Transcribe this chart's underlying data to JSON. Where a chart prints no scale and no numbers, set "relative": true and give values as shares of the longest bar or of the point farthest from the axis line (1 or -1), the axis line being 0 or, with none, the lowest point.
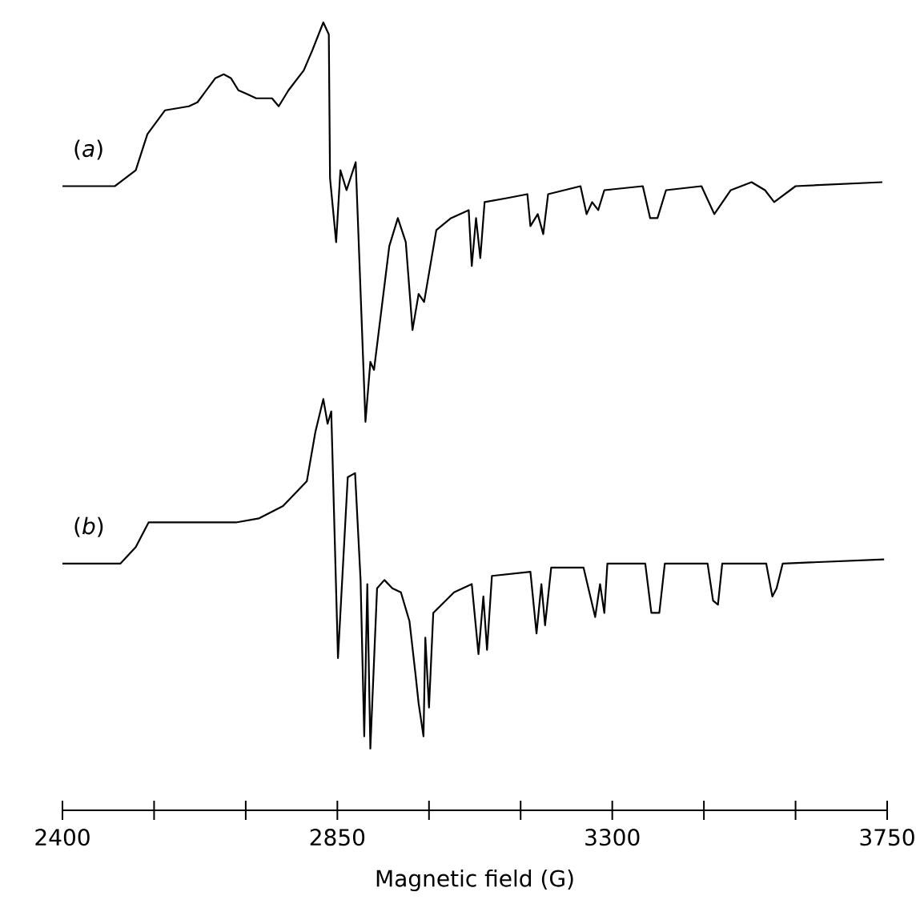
{
  "chart_data": [
    {
      "type": "line",
      "relative": true,
      "xlim": [
        2400,
        3750
      ],
      "tick_labels": false,
      "marker": "none",
      "line_style": "solid",
      "series": [
        {
          "name": "(*a*)",
          "color": "#000000",
          "x": [
            2400,
            2486,
            2520,
            2539,
            2568,
            2607,
            2621,
            2650,
            2664,
            2676,
            2688,
            2703,
            2717,
            2732,
            2743,
            2754,
            2770,
            2795,
            2809,
            2827,
            2836,
            2838,
            2848,
            2855,
            2865,
            2880,
            2896,
            2904,
            2910,
            2935,
            2949,
            2962,
            2973,
            2983,
            2992,
            3012,
            3036,
            3065,
            3070,
            3077,
            3084,
            3091,
            3127,
            3161,
            3166,
            3178,
            3187,
            3195,
            3248,
            3258,
            3267,
            3277,
            3287,
            3350,
            3362,
            3374,
            3388,
            3446,
            3467,
            3494,
            3528,
            3550,
            3565,
            3600,
            3742
          ],
          "values": [
            0.59,
            0.59,
            0.63,
            0.72,
            0.78,
            0.79,
            0.8,
            0.86,
            0.87,
            0.86,
            0.83,
            0.82,
            0.81,
            0.81,
            0.81,
            0.79,
            0.83,
            0.88,
            0.93,
            1,
            0.97,
            0.61,
            0.45,
            0.63,
            0.58,
            0.65,
            0,
            0.15,
            0.13,
            0.44,
            0.51,
            0.45,
            0.23,
            0.32,
            0.3,
            0.48,
            0.51,
            0.53,
            0.39,
            0.51,
            0.41,
            0.55,
            0.56,
            0.57,
            0.49,
            0.52,
            0.47,
            0.57,
            0.59,
            0.52,
            0.55,
            0.53,
            0.58,
            0.59,
            0.51,
            0.51,
            0.58,
            0.59,
            0.52,
            0.58,
            0.6,
            0.58,
            0.55,
            0.59,
            0.6
          ]
        }
      ]
    },
    {
      "type": "line",
      "relative": true,
      "xlim": [
        2400,
        3750
      ],
      "tick_labels": "x",
      "marker": "none",
      "line_style": "solid",
      "xlabel": "Magnetic field (G)",
      "xticks": [
        2400,
        {
          "value": 2550,
          "label": null
        },
        {
          "value": 2700,
          "label": null
        },
        2850,
        {
          "value": 3000,
          "label": null
        },
        {
          "value": 3150,
          "label": null
        },
        3300,
        {
          "value": 3450,
          "label": null
        },
        {
          "value": 3600,
          "label": null
        },
        3750
      ],
      "series": [
        {
          "name": "(*b*)",
          "color": "#000000",
          "x": [
            2400,
            2495,
            2520,
            2541,
            2587,
            2635,
            2684,
            2722,
            2761,
            2800,
            2814,
            2827,
            2834,
            2840,
            2851,
            2867,
            2879,
            2888,
            2894,
            2899,
            2904,
            2915,
            2927,
            2940,
            2954,
            2968,
            2978,
            2983,
            2991,
            2994,
            3000,
            3007,
            3041,
            3070,
            3081,
            3089,
            3095,
            3103,
            3166,
            3176,
            3184,
            3190,
            3200,
            3253,
            3272,
            3280,
            3287,
            3292,
            3354,
            3364,
            3377,
            3386,
            3456,
            3465,
            3473,
            3480,
            3552,
            3562,
            3569,
            3579,
            3745
          ],
          "values": [
            0.6,
            0.6,
            0.64,
            0.7,
            0.7,
            0.7,
            0.7,
            0.71,
            0.74,
            0.8,
            0.92,
            1,
            0.94,
            0.97,
            0.37,
            0.81,
            0.82,
            0.56,
            0.18,
            0.55,
            0.15,
            0.54,
            0.56,
            0.54,
            0.53,
            0.46,
            0.33,
            0.26,
            0.18,
            0.42,
            0.25,
            0.48,
            0.53,
            0.55,
            0.38,
            0.52,
            0.39,
            0.57,
            0.58,
            0.43,
            0.55,
            0.45,
            0.59,
            0.59,
            0.47,
            0.55,
            0.48,
            0.6,
            0.6,
            0.48,
            0.48,
            0.6,
            0.6,
            0.51,
            0.5,
            0.6,
            0.6,
            0.52,
            0.54,
            0.6,
            0.61
          ]
        }
      ]
    }
  ]
}
